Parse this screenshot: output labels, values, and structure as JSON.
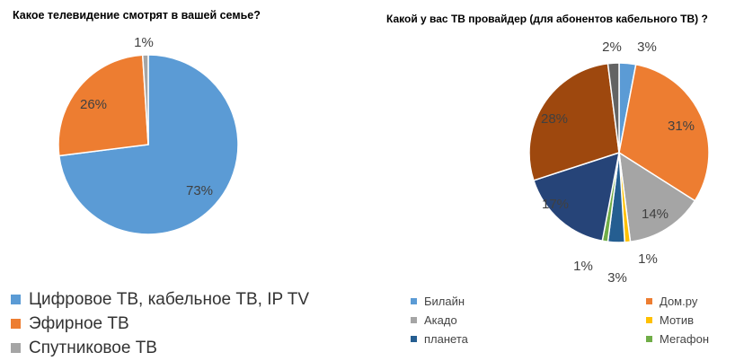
{
  "chart_data": [
    {
      "type": "pie",
      "title": "Какое телевидение смотрят в вашей семье?",
      "slices": [
        {
          "label": "Цифровое ТВ, кабельное ТВ, IP TV",
          "value": 73,
          "display": "73%",
          "color": "#5b9bd5"
        },
        {
          "label": "Эфирное ТВ",
          "value": 26,
          "display": "26%",
          "color": "#ed7d31"
        },
        {
          "label": "Спутниковое ТВ",
          "value": 1,
          "display": "1%",
          "color": "#a5a5a5"
        }
      ],
      "legend_position": "bottom-left"
    },
    {
      "type": "pie",
      "title": "Какой у вас ТВ провайдер (для абонентов кабельного ТВ) ?",
      "slices": [
        {
          "label": "Билайн",
          "value": 3,
          "display": "3%",
          "color": "#5b9bd5"
        },
        {
          "label": "Дом.ру",
          "value": 31,
          "display": "31%",
          "color": "#ed7d31"
        },
        {
          "label": "Акадо",
          "value": 14,
          "display": "14%",
          "color": "#a5a5a5"
        },
        {
          "label": "Мотив",
          "value": 1,
          "display": "1%",
          "color": "#ffc000"
        },
        {
          "label": "планета",
          "value": 3,
          "display": "3%",
          "color": "#255e91"
        },
        {
          "label": "Мегафон",
          "value": 1,
          "display": "1%",
          "color": "#70ad47"
        },
        {
          "label": "",
          "value": 17,
          "display": "17%",
          "color": "#264478"
        },
        {
          "label": "",
          "value": 28,
          "display": "28%",
          "color": "#9e480e"
        },
        {
          "label": "",
          "value": 2,
          "display": "2%",
          "color": "#636363"
        }
      ],
      "legend_position": "bottom"
    }
  ]
}
